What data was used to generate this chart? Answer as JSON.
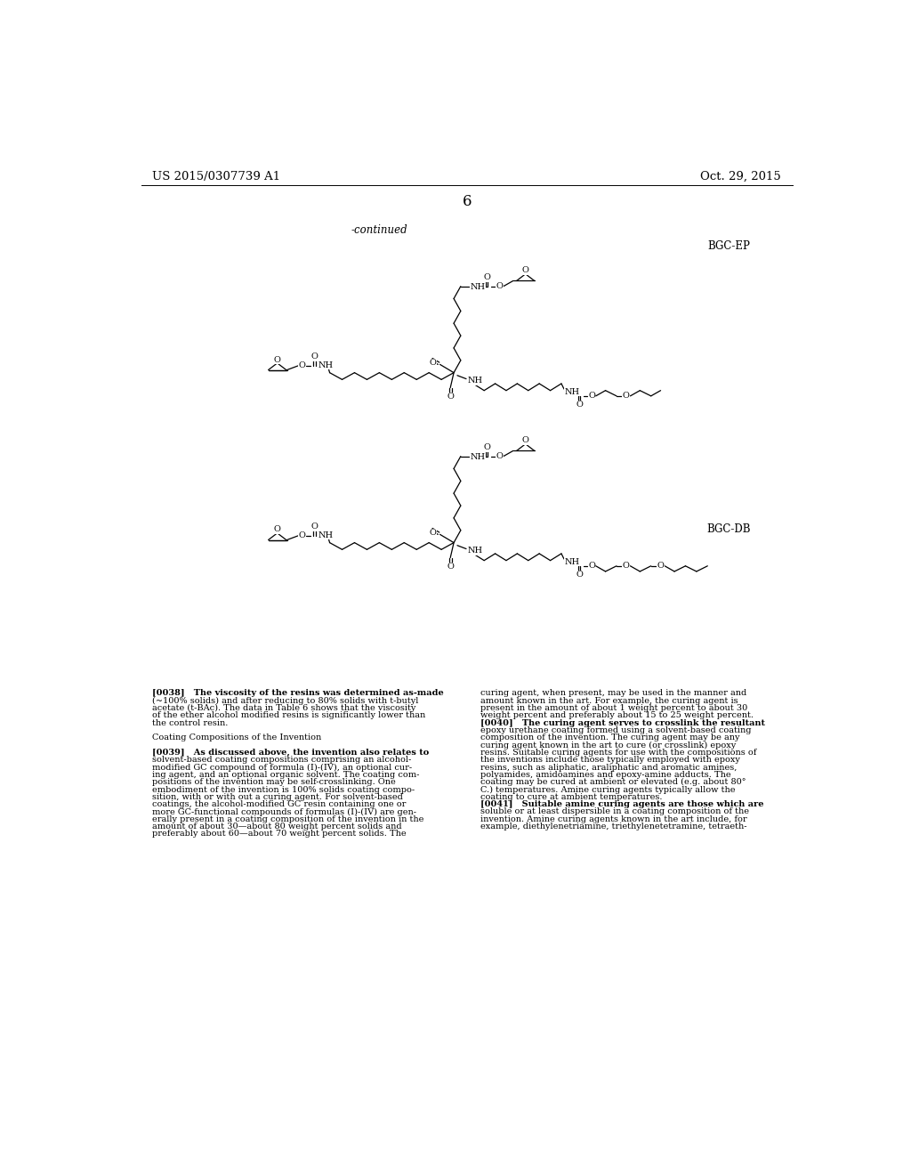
{
  "page_header_left": "US 2015/0307739 A1",
  "page_header_right": "Oct. 29, 2015",
  "page_number": "6",
  "continued_label": "-continued",
  "label_bgc_ep": "BGC-EP",
  "label_bgc_db": "BGC-DB",
  "background_color": "#ffffff",
  "text_color": "#000000",
  "font_size_header": 9.5,
  "font_size_body": 7.0,
  "font_size_label": 8.5,
  "font_size_atom": 7.0,
  "body_text_left_lines": [
    "[0038]   The viscosity of the resins was determined as-made",
    "(~100% solids) and after reducing to 80% solids with t-butyl",
    "acetate (t-BAc). The data in Table 6 shows that the viscosity",
    "of the ether alcohol modified resins is significantly lower than",
    "the control resin.",
    "",
    "Coating Compositions of the Invention",
    "",
    "[0039]   As discussed above, the invention also relates to",
    "solvent-based coating compositions comprising an alcohol-",
    "modified GC compound of formula (I)-(IV), an optional cur-",
    "ing agent, and an optional organic solvent. The coating com-",
    "positions of the invention may be self-crosslinking. One",
    "embodiment of the invention is 100% solids coating compo-",
    "sition, with or with out a curing agent. For solvent-based",
    "coatings, the alcohol-modified GC resin containing one or",
    "more GC-functional compounds of formulas (I)-(IV) are gen-",
    "erally present in a coating composition of the invention in the",
    "amount of about 30—about 80 weight percent solids and",
    "preferably about 60—about 70 weight percent solids. The"
  ],
  "body_text_right_lines": [
    "curing agent, when present, may be used in the manner and",
    "amount known in the art. For example, the curing agent is",
    "present in the amount of about 1 weight percent to about 30",
    "weight percent and preferably about 15 to 25 weight percent.",
    "[0040]   The curing agent serves to crosslink the resultant",
    "epoxy urethane coating formed using a solvent-based coating",
    "composition of the invention. The curing agent may be any",
    "curing agent known in the art to cure (or crosslink) epoxy",
    "resins. Suitable curing agents for use with the compositions of",
    "the inventions include those typically employed with epoxy",
    "resins, such as aliphatic, araliphatic and aromatic amines,",
    "polyamides, amidoamines and epoxy-amine adducts. The",
    "coating may be cured at ambient or elevated (e.g. about 80°",
    "C.) temperatures. Amine curing agents typically allow the",
    "coating to cure at ambient temperatures.",
    "[0041]   Suitable amine curing agents are those which are",
    "soluble or at least dispersible in a coating composition of the",
    "invention. Amine curing agents known in the art include, for",
    "example, diethylenetriamine, triethylenetetramine, tetraeth-"
  ]
}
